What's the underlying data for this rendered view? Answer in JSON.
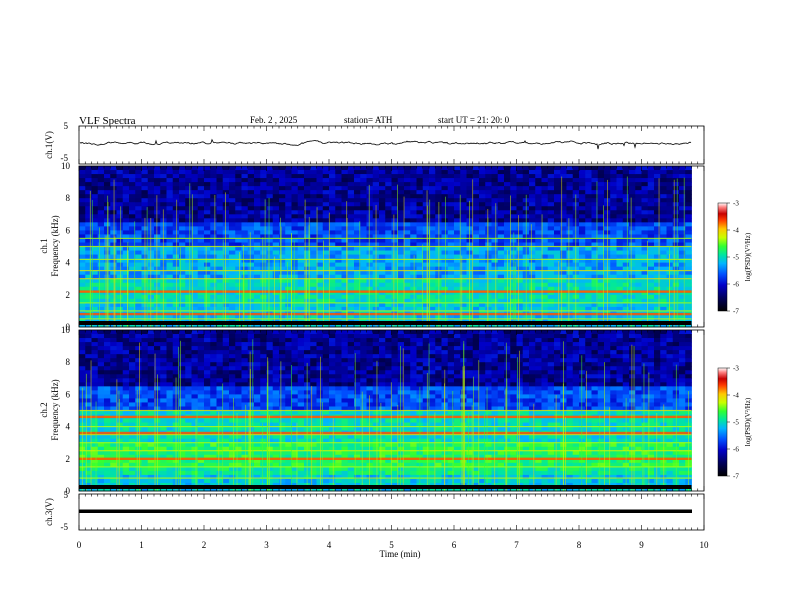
{
  "header": {
    "title": "VLF Spectra",
    "date": "Feb. 2 , 2025",
    "station": "station= ATH",
    "start": "start UT = 21: 20: 0"
  },
  "colors": {
    "trace": "#000000",
    "colormap": [
      "#000000",
      "#00005a",
      "#0000c8",
      "#0050ff",
      "#00b4ff",
      "#00e6a0",
      "#32ff32",
      "#c8ff00",
      "#ffc800",
      "#ff3c00",
      "#c80000",
      "#ff8080",
      "#ffffff"
    ]
  },
  "chart_data": [
    {
      "type": "line",
      "name": "waveform-ch1",
      "ylabel": "ch.1(V)",
      "ylim": [
        -5,
        5
      ],
      "yticks": [
        "5",
        "-5"
      ],
      "xlim": [
        0,
        10
      ],
      "description_level": 0.1
    },
    {
      "type": "heatmap",
      "name": "spectrogram-ch1",
      "ylabel": "ch.1\nFrequency (kHz)",
      "ylabel_line1": "ch.1",
      "ylabel_line2": "Frequency (kHz)",
      "xlim": [
        0,
        10
      ],
      "ylim": [
        0,
        10
      ],
      "yticks": [
        "0",
        "2",
        "4",
        "6",
        "8",
        "10"
      ],
      "data_end_min": 9.8,
      "colorbar": {
        "label": "log(PSD)(V²/Hz)",
        "range": [
          -7,
          -3
        ],
        "ticks": [
          "-3",
          "-4",
          "-5",
          "-6",
          "-7"
        ]
      },
      "bands_khz": [
        0.2,
        0.5,
        1.0,
        1.5,
        2.2,
        3.0,
        3.5,
        4.2,
        5.0,
        5.5
      ],
      "strong_bands_khz": [
        2.2,
        0.8
      ]
    },
    {
      "type": "heatmap",
      "name": "spectrogram-ch2",
      "ylabel_line1": "ch.2",
      "ylabel_line2": "Frequency (kHz)",
      "xlim": [
        0,
        10
      ],
      "ylim": [
        0,
        10
      ],
      "yticks": [
        "0",
        "2",
        "4",
        "6",
        "8",
        "10"
      ],
      "data_end_min": 9.8,
      "colorbar": {
        "label": "log(PSD)(V²/Hz)",
        "range": [
          -7,
          -3
        ],
        "ticks": [
          "-3",
          "-4",
          "-5",
          "-6",
          "-7"
        ]
      },
      "bands_khz": [
        0.3,
        0.8,
        1.5,
        2.0,
        2.5,
        3.0,
        3.5,
        4.0,
        4.6,
        5.0
      ],
      "strong_bands_khz": [
        2.0,
        4.6,
        3.6
      ]
    },
    {
      "type": "line",
      "name": "waveform-ch3",
      "ylabel": "ch.3(V)",
      "ylim": [
        -5,
        5
      ],
      "yticks": [
        "5",
        "0",
        "-5"
      ],
      "xlim": [
        0,
        10
      ],
      "level": 0.1
    }
  ],
  "xaxis": {
    "label": "Time (min)",
    "ticks": [
      "0",
      "1",
      "2",
      "3",
      "4",
      "5",
      "6",
      "7",
      "8",
      "9",
      "10"
    ]
  }
}
